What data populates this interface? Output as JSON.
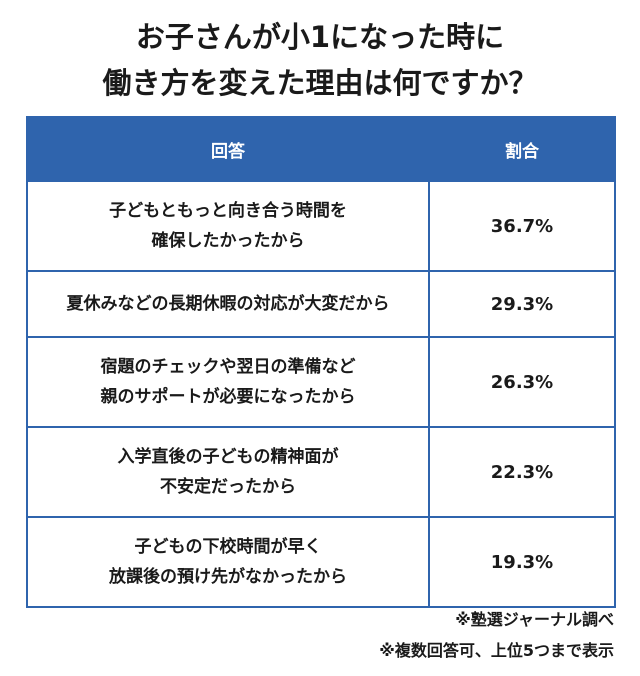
{
  "title": {
    "line1": "お子さんが小1になった時に",
    "line2": "働き方を変えた理由は何ですか？"
  },
  "table": {
    "headers": {
      "answer": "回答",
      "ratio": "割合"
    },
    "rows": [
      {
        "lines": [
          "子どもともっと向き合う時間を",
          "確保したかったから"
        ],
        "pct": "36.7%"
      },
      {
        "lines": [
          "夏休みなどの長期休暇の対応が大変だから"
        ],
        "pct": "29.3%"
      },
      {
        "lines": [
          "宿題のチェックや翌日の準備など",
          "親のサポートが必要になったから"
        ],
        "pct": "26.3%"
      },
      {
        "lines": [
          "入学直後の子どもの精神面が",
          "不安定だったから"
        ],
        "pct": "22.3%"
      },
      {
        "lines": [
          "子どもの下校時間が早く",
          "放課後の預け先がなかったから"
        ],
        "pct": "19.3%"
      }
    ]
  },
  "notes": {
    "source": "※塾選ジャーナル調べ",
    "method": "※複数回答可、上位5つまで表示"
  },
  "colors": {
    "header_bg": "#2f64ad",
    "border": "#2f64ad"
  }
}
